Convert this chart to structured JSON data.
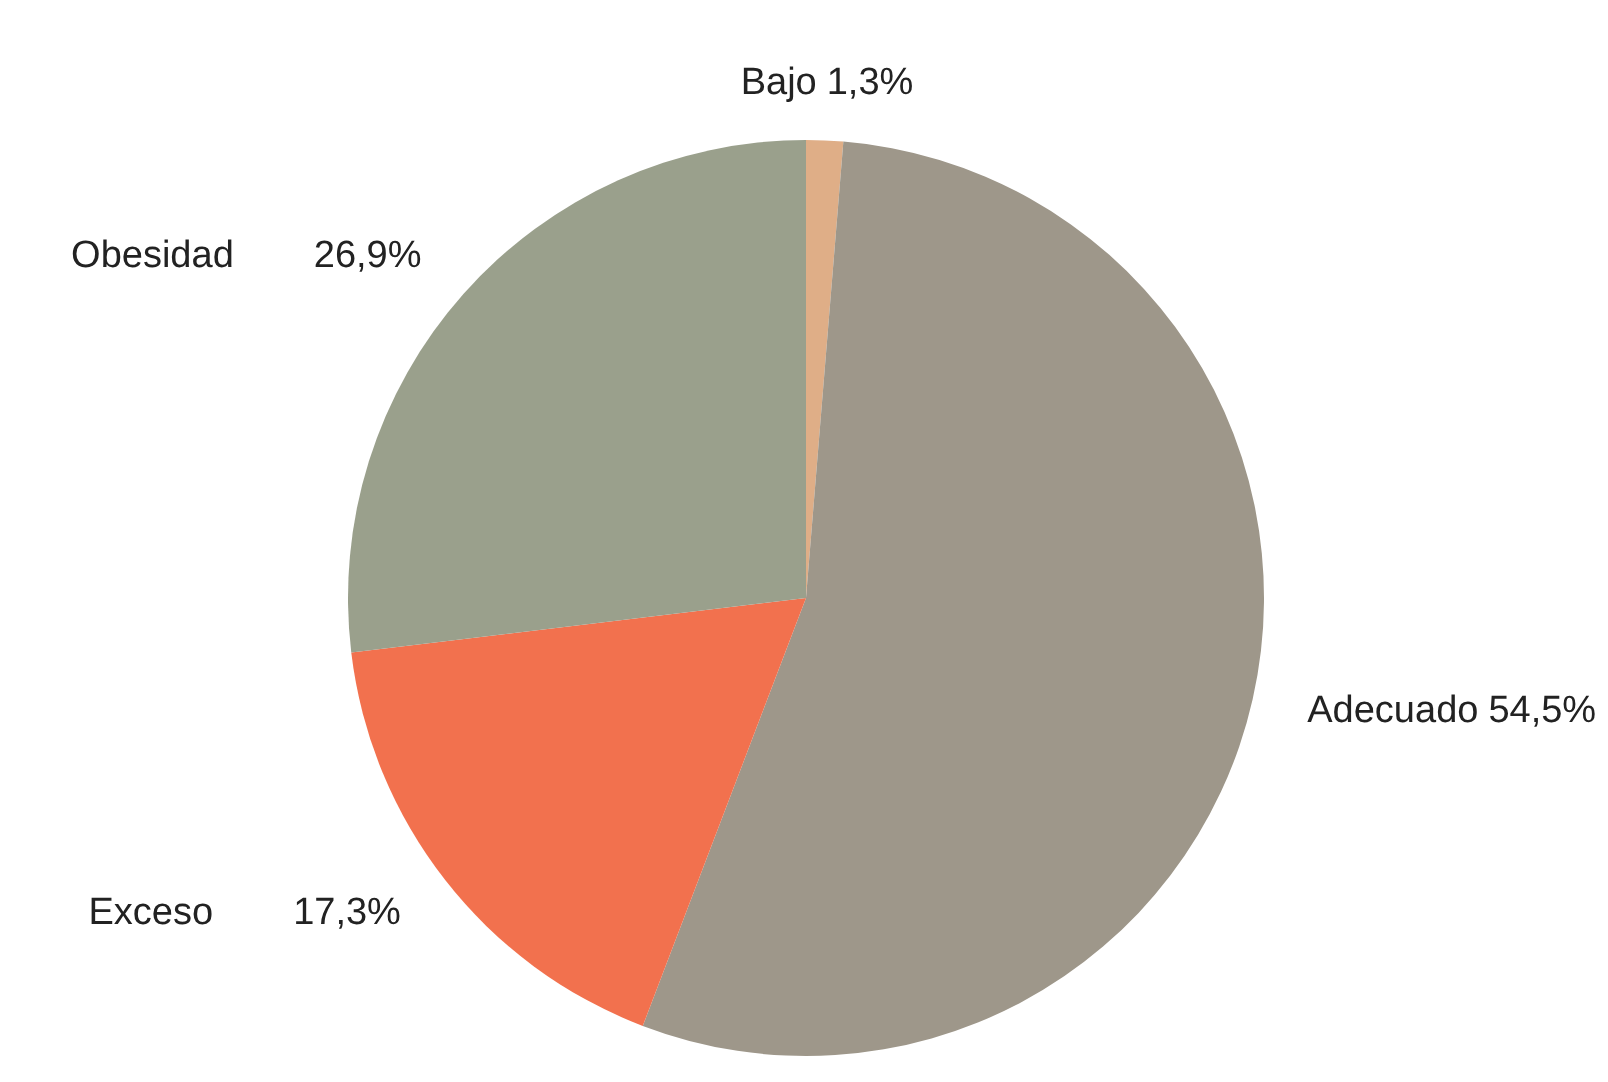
{
  "chart_data": {
    "type": "pie",
    "categories": [
      "Bajo",
      "Adecuado",
      "Exceso",
      "Obesidad"
    ],
    "values": [
      1.3,
      54.5,
      17.3,
      26.9
    ],
    "value_labels": [
      "1,3%",
      "54,5%",
      "17,3%",
      "26,9%"
    ],
    "colors": [
      "#dfae87",
      "#9e978a",
      "#f2714e",
      "#9aa08c"
    ],
    "legend": false
  }
}
